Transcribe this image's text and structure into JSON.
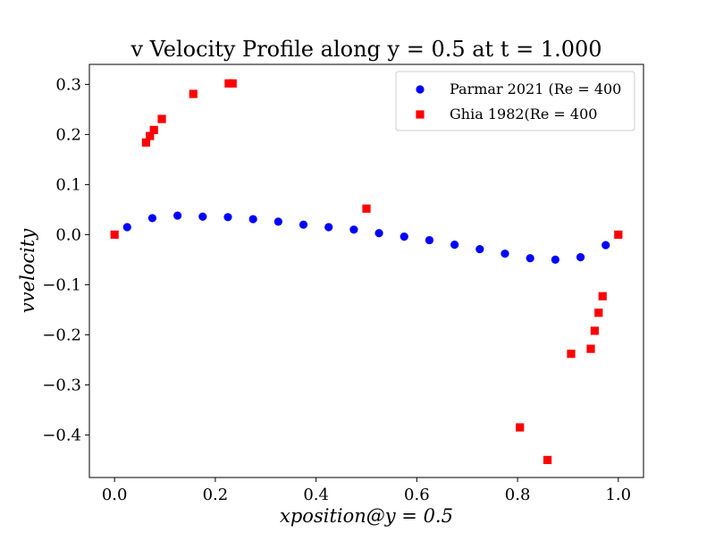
{
  "chart_data": {
    "type": "scatter",
    "title": "v Velocity Profile along y = 0.5 at t = 1.000",
    "xlabel": "xposition@y = 0.5",
    "ylabel": "vvelocity",
    "xlim": [
      -0.05,
      1.05
    ],
    "ylim": [
      -0.485,
      0.34
    ],
    "x_ticks": [
      0.0,
      0.2,
      0.4,
      0.6,
      0.8,
      1.0
    ],
    "x_tick_labels": [
      "0.0",
      "0.2",
      "0.4",
      "0.6",
      "0.8",
      "1.0"
    ],
    "y_ticks": [
      0.3,
      0.2,
      0.1,
      0.0,
      -0.1,
      -0.2,
      -0.3,
      -0.4
    ],
    "y_tick_labels": [
      "0.3",
      "0.2",
      "0.1",
      "0.0",
      "−0.1",
      "−0.2",
      "−0.3",
      "−0.4"
    ],
    "grid": false,
    "legend_position": "top-right",
    "series": [
      {
        "name": "Parmar 2021 (Re = 400",
        "marker": "circle",
        "color": "#0000ff",
        "x": [
          0.025,
          0.075,
          0.125,
          0.175,
          0.225,
          0.275,
          0.325,
          0.375,
          0.425,
          0.475,
          0.525,
          0.575,
          0.625,
          0.675,
          0.725,
          0.775,
          0.825,
          0.875,
          0.925,
          0.975
        ],
        "y": [
          0.015,
          0.033,
          0.038,
          0.036,
          0.035,
          0.031,
          0.026,
          0.02,
          0.015,
          0.01,
          0.003,
          -0.004,
          -0.011,
          -0.02,
          -0.029,
          -0.038,
          -0.047,
          -0.05,
          -0.045,
          -0.021
        ]
      },
      {
        "name": "Ghia 1982(Re = 400",
        "marker": "square",
        "color": "#ff0000",
        "x": [
          0.0,
          0.0625,
          0.0703,
          0.0781,
          0.0938,
          0.1563,
          0.2266,
          0.2344,
          0.5,
          0.8047,
          0.8594,
          0.9063,
          0.9453,
          0.9531,
          0.9609,
          0.9688,
          1.0
        ],
        "y": [
          0.0,
          0.184,
          0.197,
          0.209,
          0.231,
          0.281,
          0.302,
          0.302,
          0.052,
          -0.385,
          -0.45,
          -0.238,
          -0.228,
          -0.192,
          -0.156,
          -0.123,
          0.0
        ]
      }
    ]
  }
}
